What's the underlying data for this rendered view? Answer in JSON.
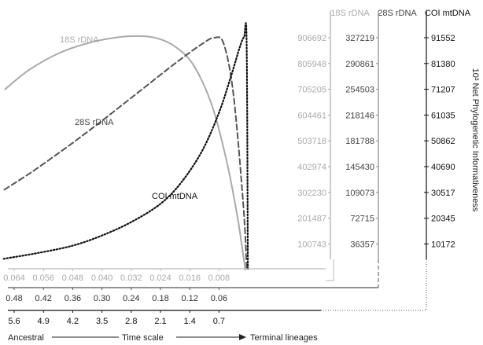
{
  "chart_data": {
    "type": "line",
    "x_axes": [
      {
        "name": "18S rDNA",
        "ticks": [
          "0.064",
          "0.056",
          "0.048",
          "0.040",
          "0.032",
          "0.024",
          "0.016",
          "0.008"
        ],
        "color": "#aaaaaa"
      },
      {
        "name": "28S rDNA",
        "ticks": [
          "0.48",
          "0.42",
          "0.36",
          "0.30",
          "0.24",
          "0.18",
          "0.12",
          "0.06"
        ],
        "color": "#444444"
      },
      {
        "name": "COI mtDNA",
        "ticks": [
          "5.6",
          "4.9",
          "4.2",
          "3.5",
          "2.8",
          "2.1",
          "1.4",
          "0.7"
        ],
        "color": "#222222"
      }
    ],
    "x_caption": {
      "left": "Ancestral",
      "middle": "Time scale",
      "right": "Terminal lineages"
    },
    "y_axes": [
      {
        "name": "18S rDNA",
        "ticks": [
          "906692",
          "805948",
          "705205",
          "604461",
          "503718",
          "402974",
          "302230",
          "201487",
          "100743"
        ],
        "color": "#aaaaaa"
      },
      {
        "name": "28S rDNA",
        "ticks": [
          "327219",
          "290861",
          "254503",
          "218146",
          "181788",
          "145430",
          "109073",
          "72715",
          "36357"
        ],
        "color": "#444444"
      },
      {
        "name": "COI mtDNA",
        "ticks": [
          "91552",
          "81380",
          "71207",
          "61035",
          "50862",
          "40690",
          "30517",
          "20345",
          "10172"
        ],
        "color": "#111111"
      }
    ],
    "y_label": "10³ Net Phylogenetic Informativeness",
    "series": [
      {
        "name": "18S rDNA",
        "style": "solid",
        "color": "#aaaaaa",
        "x": [
          0.0665,
          0.06,
          0.052,
          0.044,
          0.036,
          0.03,
          0.025,
          0.02,
          0.015,
          0.01,
          0.006,
          0.003,
          0.0008
        ],
        "y": [
          705205,
          780000,
          845000,
          885000,
          908000,
          913000,
          905000,
          872000,
          800000,
          645000,
          430000,
          210000,
          0
        ]
      },
      {
        "name": "28S rDNA",
        "style": "dashed",
        "color": "#555555",
        "x": [
          0.5,
          0.45,
          0.4,
          0.35,
          0.3,
          0.25,
          0.2,
          0.15,
          0.1,
          0.07,
          0.05,
          0.03,
          0.01,
          0.003
        ],
        "y": [
          113000,
          135000,
          159000,
          184000,
          210000,
          237000,
          264000,
          291000,
          316000,
          327200,
          318000,
          245000,
          90000,
          0
        ]
      },
      {
        "name": "COI mtDNA",
        "style": "dotted",
        "color": "#111111",
        "x": [
          5.85,
          5.0,
          4.2,
          3.5,
          2.8,
          2.1,
          1.6,
          1.1,
          0.7,
          0.4,
          0.2,
          0.1,
          0.04,
          0.01
        ],
        "y": [
          4300,
          6700,
          9500,
          13500,
          18800,
          26000,
          34500,
          47000,
          62000,
          77000,
          88000,
          91800,
          90000,
          0
        ]
      }
    ]
  }
}
